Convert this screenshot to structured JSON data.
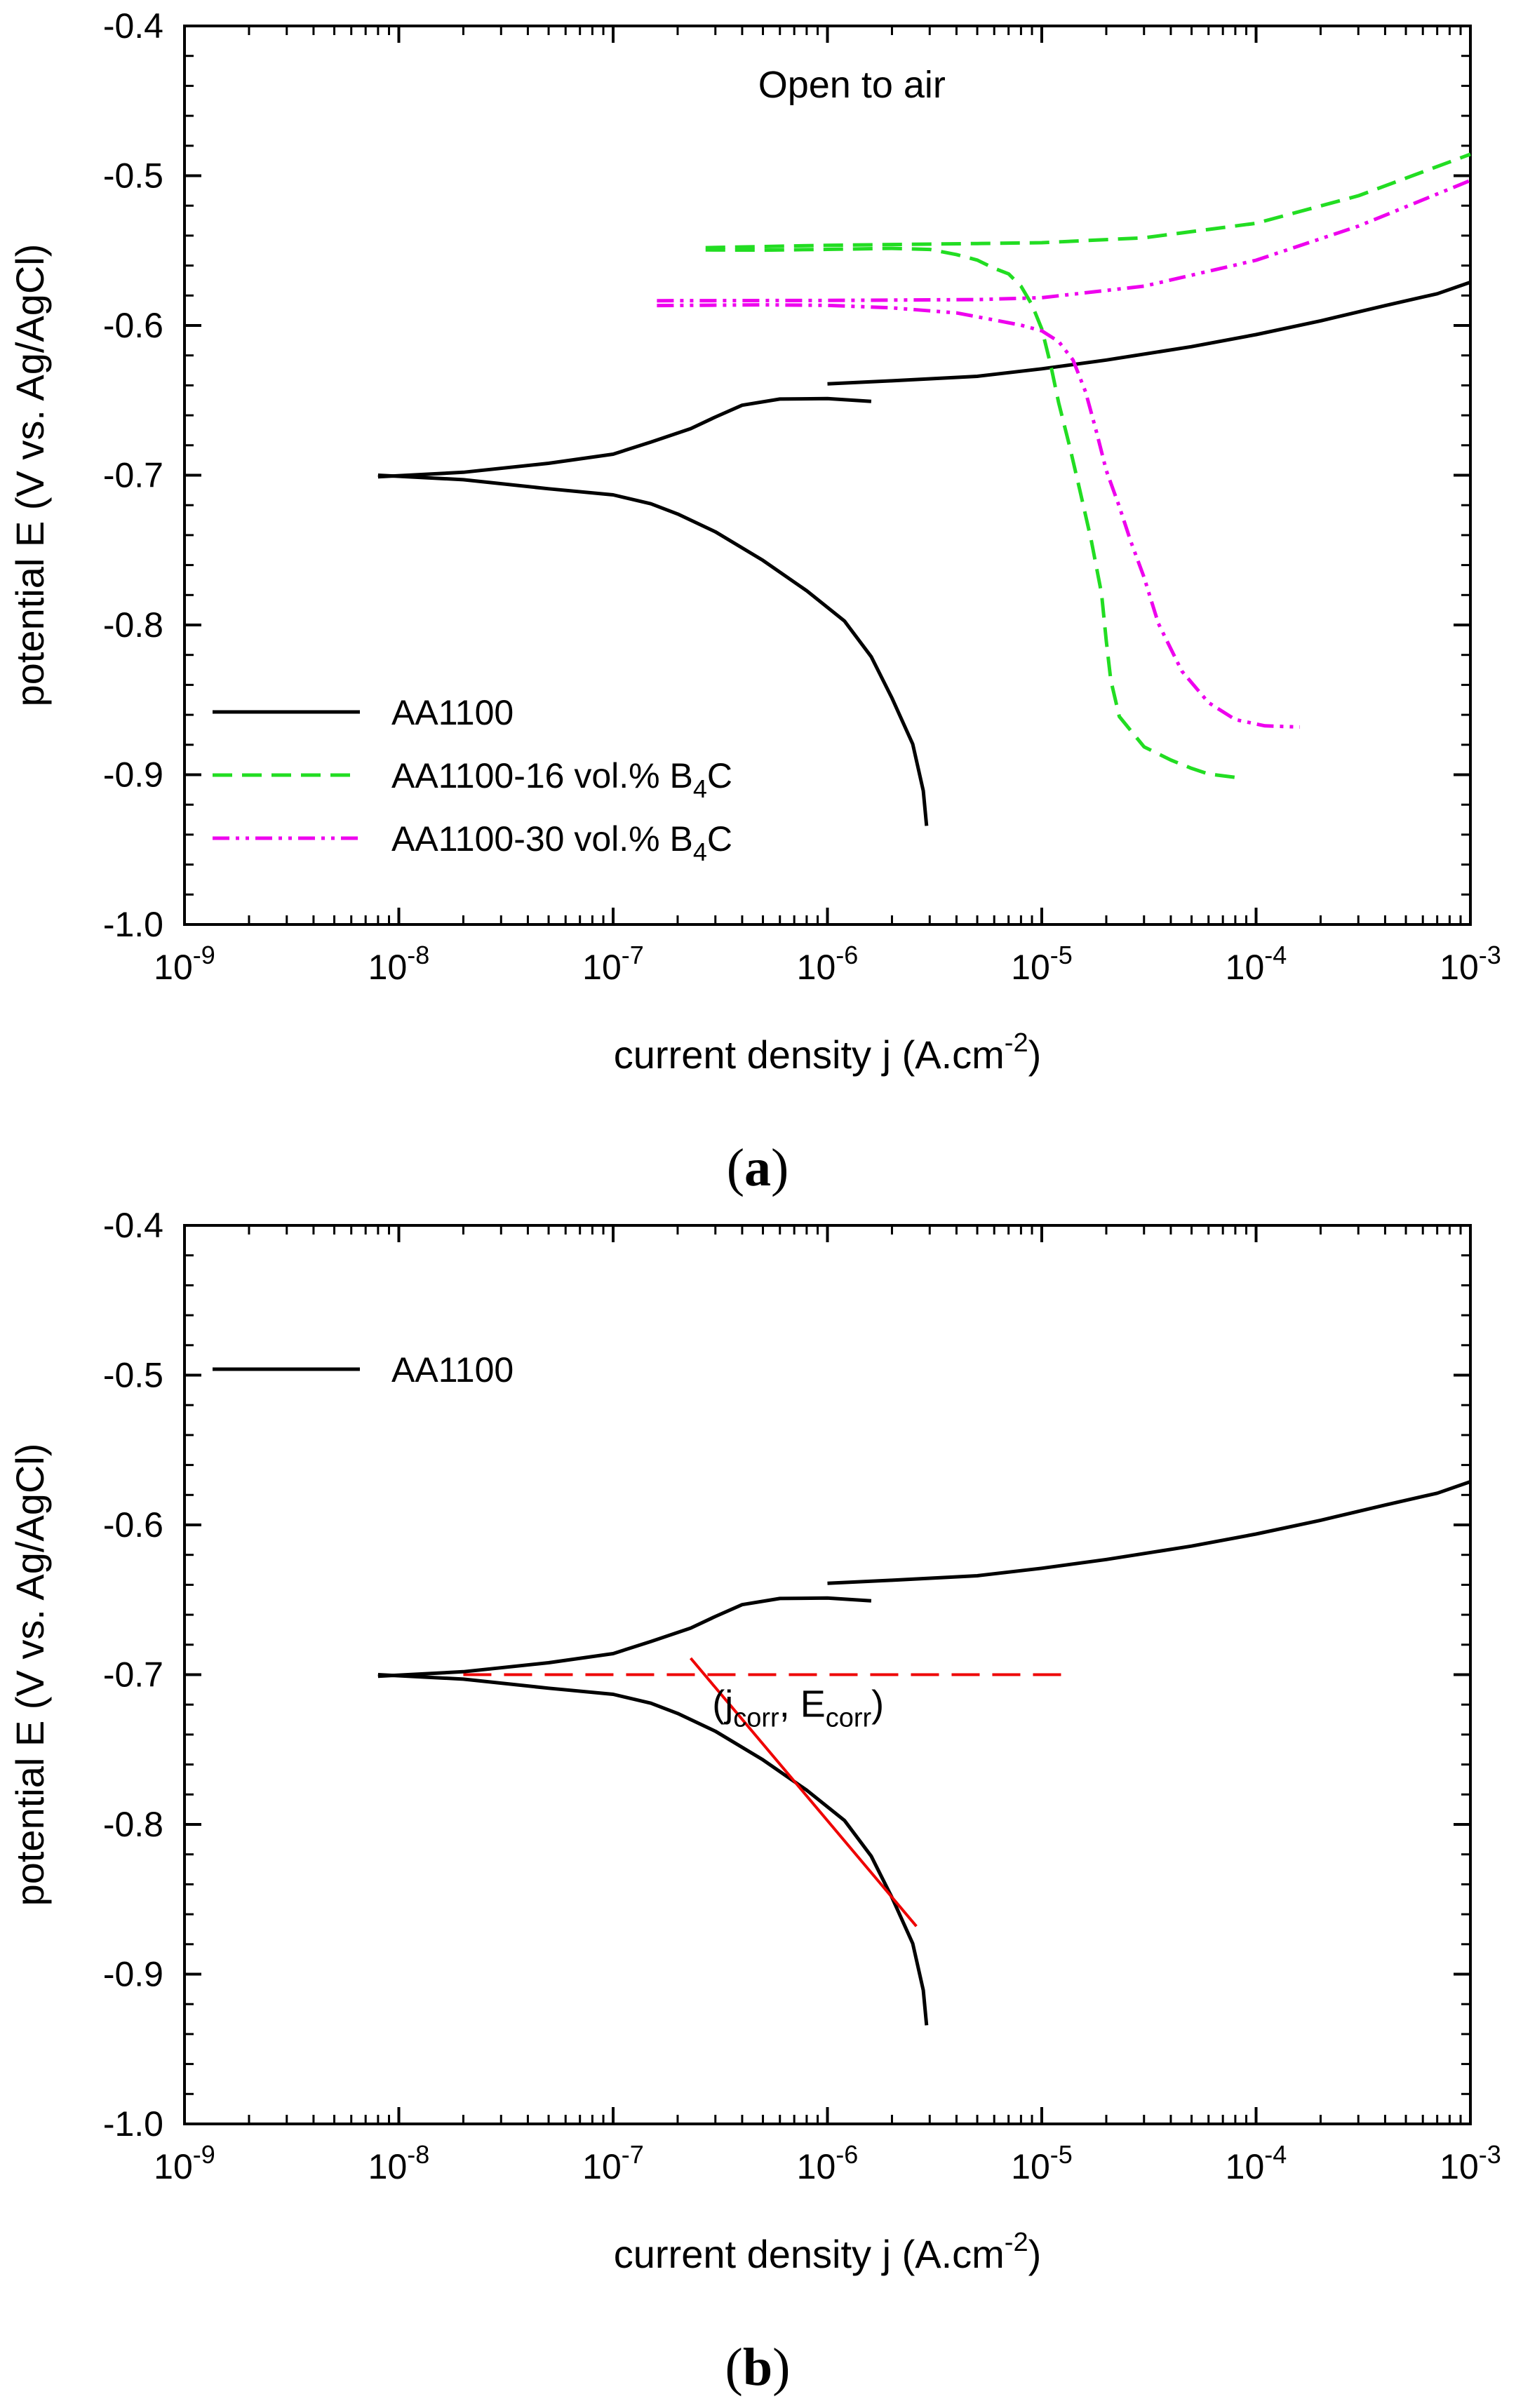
{
  "figure": {
    "panels": [
      "(a)",
      "(b)"
    ]
  },
  "chart_data": [
    {
      "panel": "a",
      "type": "line",
      "title": "",
      "annotation": "Open to air",
      "xlabel": "current density j (A.cm-2)",
      "ylabel": "potential E (V vs. Ag/AgCl)",
      "xscale": "log",
      "xlim": [
        1e-09,
        0.001
      ],
      "ylim": [
        -1.0,
        -0.4
      ],
      "x_ticks": [
        {
          "mantissa": "10",
          "exp": "-9"
        },
        {
          "mantissa": "10",
          "exp": "-8"
        },
        {
          "mantissa": "10",
          "exp": "-7"
        },
        {
          "mantissa": "10",
          "exp": "-6"
        },
        {
          "mantissa": "10",
          "exp": "-5"
        },
        {
          "mantissa": "10",
          "exp": "-4"
        },
        {
          "mantissa": "10",
          "exp": "-3"
        }
      ],
      "y_ticks": [
        "-1.0",
        "-0.9",
        "-0.8",
        "-0.7",
        "-0.6",
        "-0.5",
        "-0.4"
      ],
      "legend_position": "bottom-left",
      "series": [
        {
          "name": "AA1100",
          "legend_text": "AA1100",
          "legend_sub": "",
          "legend_suffix": "",
          "color": "#000000",
          "style": "solid",
          "branches": [
            {
              "x": [
                8e-09,
                2e-08,
                5e-08,
                1e-07,
                1.5e-07,
                2e-07,
                3e-07,
                5e-07,
                8e-07,
                1.2e-06,
                1.6e-06,
                2e-06,
                2.5e-06,
                2.8e-06,
                2.9e-06
              ],
              "y": [
                -0.7,
                -0.702,
                -0.708,
                -0.713,
                -0.72,
                -0.727,
                -0.738,
                -0.756,
                -0.776,
                -0.797,
                -0.822,
                -0.85,
                -0.88,
                -0.91,
                -0.933
              ]
            },
            {
              "x": [
                8e-09,
                2e-08,
                5e-08,
                1e-07,
                1.5e-07,
                2.3e-07,
                3e-07,
                4e-07,
                6e-07,
                1e-06,
                1.6e-06
              ],
              "y": [
                -0.7,
                -0.698,
                -0.693,
                -0.687,
                -0.678,
                -0.668,
                -0.66,
                -0.653,
                -0.65,
                -0.65,
                -0.651
              ]
            },
            {
              "x": [
                1e-06,
                2e-06,
                5e-06,
                1e-05,
                2e-05,
                5e-05,
                0.0001,
                0.0002,
                0.0004,
                0.0007,
                0.001
              ],
              "y": [
                -0.64,
                -0.638,
                -0.634,
                -0.628,
                -0.622,
                -0.614,
                -0.607,
                -0.598,
                -0.587,
                -0.578,
                -0.57
              ]
            }
          ]
        },
        {
          "name": "AA1100-16 vol.% B4C",
          "legend_text": "AA1100-16 vol.% B",
          "legend_sub": "4",
          "legend_suffix": "C",
          "color": "#22dd22",
          "style": "dashed",
          "branches": [
            {
              "x": [
                2.7e-07,
                5e-07,
                1e-06,
                2e-06,
                3e-06,
                4e-06,
                5e-06,
                6e-06,
                7e-06,
                8e-06,
                9e-06,
                1e-05,
                1.1e-05,
                1.2e-05,
                1.35e-05,
                1.5e-05,
                1.7e-05,
                1.9e-05,
                2e-05,
                2.1e-05,
                2.3e-05,
                3e-05,
                4e-05,
                5e-05,
                6e-05,
                8e-05
              ],
              "y": [
                -0.548,
                -0.548,
                -0.549,
                -0.55,
                -0.551,
                -0.553,
                -0.555,
                -0.56,
                -0.565,
                -0.575,
                -0.588,
                -0.603,
                -0.625,
                -0.65,
                -0.68,
                -0.71,
                -0.745,
                -0.78,
                -0.81,
                -0.835,
                -0.86,
                -0.882,
                -0.892,
                -0.897,
                -0.899,
                -0.9
              ]
            },
            {
              "x": [
                2.7e-07,
                1e-06,
                5e-06,
                1e-05,
                3e-05,
                0.0001,
                0.0003,
                0.001
              ],
              "y": [
                -0.548,
                -0.548,
                -0.547,
                -0.545,
                -0.54,
                -0.53,
                -0.513,
                -0.487
              ]
            }
          ]
        },
        {
          "name": "AA1100-30 vol.% B4C",
          "legend_text": "AA1100-30 vol.% B",
          "legend_sub": "4",
          "legend_suffix": "C",
          "color": "#ee00ee",
          "style": "dashdotdot",
          "branches": [
            {
              "x": [
                1.6e-07,
                5e-07,
                1e-06,
                2e-06,
                4e-06,
                6e-06,
                8e-06,
                1e-05,
                1.2e-05,
                1.4e-05,
                1.6e-05,
                1.8e-05,
                2e-05,
                2.3e-05,
                2.6e-05,
                3e-05,
                3.5e-05,
                4.5e-05,
                6e-05,
                8e-05,
                0.00011,
                0.00016
              ],
              "y": [
                -0.585,
                -0.586,
                -0.588,
                -0.59,
                -0.592,
                -0.595,
                -0.598,
                -0.603,
                -0.612,
                -0.625,
                -0.645,
                -0.67,
                -0.695,
                -0.72,
                -0.745,
                -0.77,
                -0.8,
                -0.83,
                -0.85,
                -0.862,
                -0.868,
                -0.87
              ]
            },
            {
              "x": [
                1.6e-07,
                1e-06,
                5e-06,
                1e-05,
                3e-05,
                0.0001,
                0.0003,
                0.001
              ],
              "y": [
                -0.585,
                -0.585,
                -0.583,
                -0.58,
                -0.572,
                -0.556,
                -0.535,
                -0.505
              ]
            }
          ]
        }
      ]
    },
    {
      "panel": "b",
      "type": "line",
      "title": "",
      "xlabel": "current density j (A.cm-2)",
      "ylabel": "potential E (V vs. Ag/AgCl)",
      "xscale": "log",
      "xlim": [
        1e-09,
        0.001
      ],
      "ylim": [
        -1.0,
        -0.4
      ],
      "x_ticks": [
        {
          "mantissa": "10",
          "exp": "-9"
        },
        {
          "mantissa": "10",
          "exp": "-8"
        },
        {
          "mantissa": "10",
          "exp": "-7"
        },
        {
          "mantissa": "10",
          "exp": "-6"
        },
        {
          "mantissa": "10",
          "exp": "-5"
        },
        {
          "mantissa": "10",
          "exp": "-4"
        },
        {
          "mantissa": "10",
          "exp": "-3"
        }
      ],
      "y_ticks": [
        "-1.0",
        "-0.9",
        "-0.8",
        "-0.7",
        "-0.6",
        "-0.5",
        "-0.4"
      ],
      "legend_position": "top-left",
      "series": [
        {
          "name": "AA1100",
          "legend_text": "AA1100",
          "legend_sub": "",
          "legend_suffix": "",
          "color": "#000000",
          "style": "solid",
          "branches": [
            {
              "x": [
                8e-09,
                2e-08,
                5e-08,
                1e-07,
                1.5e-07,
                2e-07,
                3e-07,
                5e-07,
                8e-07,
                1.2e-06,
                1.6e-06,
                2e-06,
                2.5e-06,
                2.8e-06,
                2.9e-06
              ],
              "y": [
                -0.7,
                -0.702,
                -0.708,
                -0.713,
                -0.72,
                -0.727,
                -0.738,
                -0.756,
                -0.776,
                -0.797,
                -0.822,
                -0.85,
                -0.88,
                -0.91,
                -0.933
              ]
            },
            {
              "x": [
                8e-09,
                2e-08,
                5e-08,
                1e-07,
                1.5e-07,
                2.3e-07,
                3e-07,
                4e-07,
                6e-07,
                1e-06,
                1.6e-06
              ],
              "y": [
                -0.7,
                -0.698,
                -0.693,
                -0.687,
                -0.678,
                -0.668,
                -0.66,
                -0.653,
                -0.65,
                -0.65,
                -0.651
              ]
            },
            {
              "x": [
                1e-06,
                2e-06,
                5e-06,
                1e-05,
                2e-05,
                5e-05,
                0.0001,
                0.0002,
                0.0004,
                0.0007,
                0.001
              ],
              "y": [
                -0.64,
                -0.638,
                -0.634,
                -0.628,
                -0.622,
                -0.614,
                -0.607,
                -0.598,
                -0.587,
                -0.578,
                -0.57
              ]
            }
          ]
        }
      ],
      "guides": [
        {
          "name": "Ecorr level",
          "x": [
            2e-08,
            1.4e-05
          ],
          "y": [
            -0.7,
            -0.7
          ],
          "color": "#ee0000",
          "style": "dashed"
        },
        {
          "name": "cathodic Tafel line",
          "x": [
            2.3e-07,
            2.6e-06
          ],
          "y": [
            -0.689,
            -0.868
          ],
          "color": "#ee0000",
          "style": "solid"
        }
      ],
      "annotation_parts": {
        "open": "(j",
        "sub1": "corr",
        "mid": ", E",
        "sub2": "corr",
        "close": ")"
      }
    }
  ]
}
